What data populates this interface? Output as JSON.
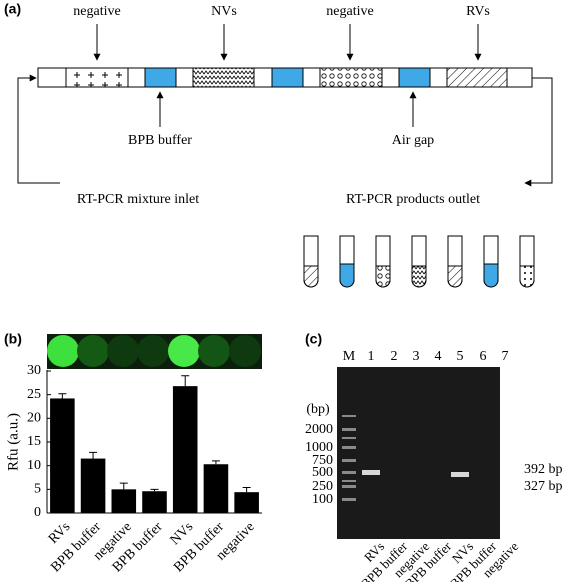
{
  "panel_a": {
    "label": "(a)",
    "top_labels": [
      "negative",
      "NVs",
      "negative",
      "RVs"
    ],
    "bottom_labels": [
      "BPB buffer",
      "Air gap"
    ],
    "inlet": "RT-PCR mixture inlet",
    "outlet": "RT-PCR products outlet"
  },
  "chart_data": {
    "type": "bar",
    "panel_label": "(b)",
    "ylabel": "Rfu (a.u.)",
    "categories": [
      "RVs",
      "BPB buffer",
      "negative",
      "BPB buffer",
      "NVs",
      "BPB buffer",
      "negative"
    ],
    "values": [
      24.2,
      11.5,
      5.0,
      4.6,
      26.8,
      10.3,
      4.4
    ],
    "errors": [
      1.0,
      1.3,
      1.3,
      0.4,
      2.2,
      0.7,
      1.0
    ],
    "color": "#000000",
    "ylim": [
      0,
      30
    ],
    "yticks": [
      0,
      5,
      10,
      15,
      20,
      25,
      30
    ]
  },
  "panel_c": {
    "label": "(c)",
    "lanes": [
      "M",
      "1",
      "2",
      "3",
      "4",
      "5",
      "6",
      "7"
    ],
    "size_unit": "(bp)",
    "marker_sizes": [
      "2000",
      "1000",
      "750",
      "500",
      "250",
      "100"
    ],
    "band_sizes": [
      "392 bp",
      "327 bp"
    ],
    "lane_samples": [
      "RVs",
      "BPB buffer",
      "negative",
      "BPB buffer",
      "NVs",
      "BPB buffer",
      "negative"
    ]
  }
}
